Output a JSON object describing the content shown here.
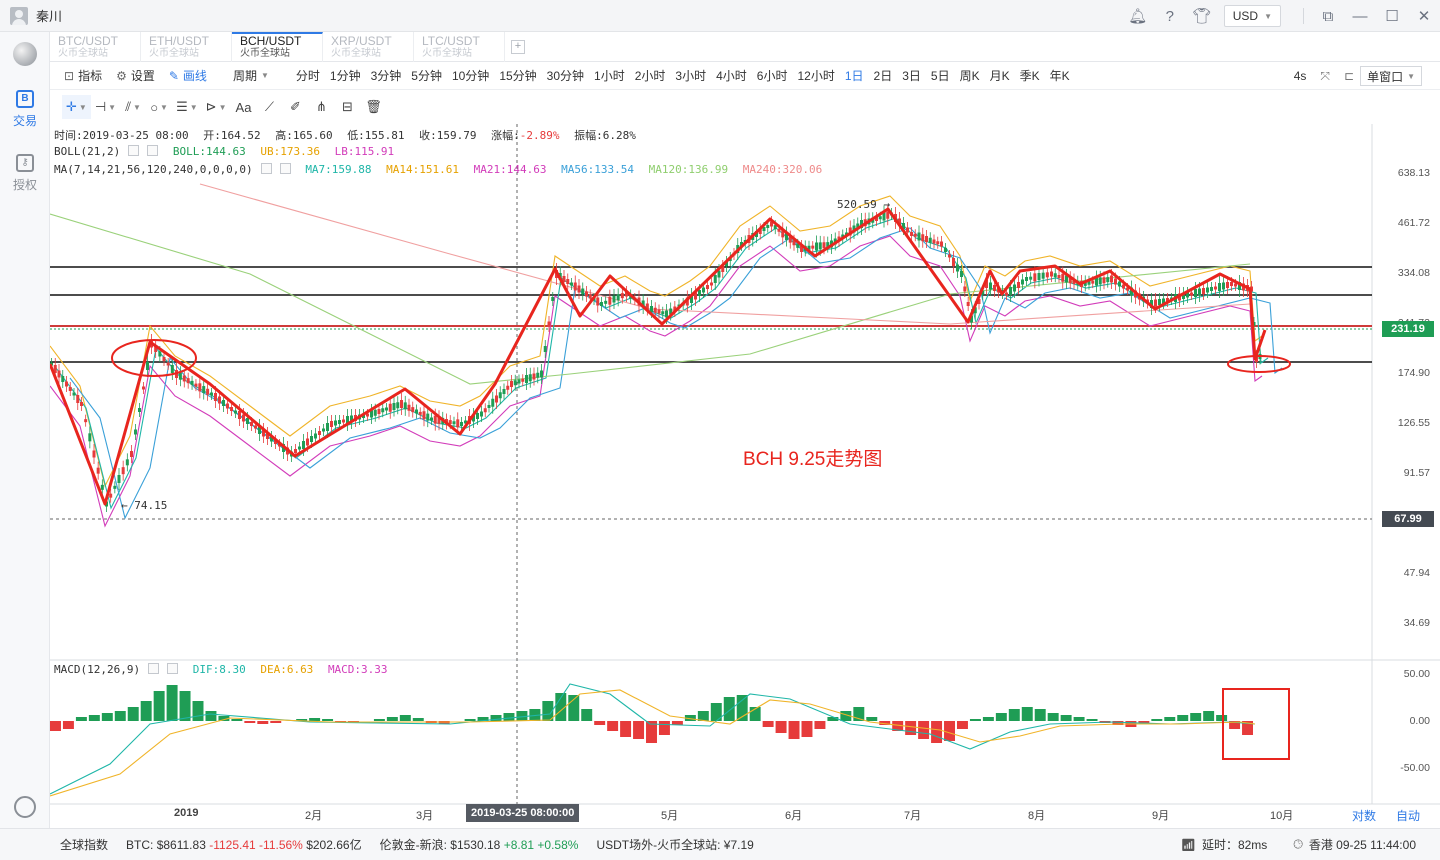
{
  "window": {
    "username": "秦川",
    "currency": "USD"
  },
  "sidebar": {
    "items": [
      {
        "label": "交易",
        "icon": "B"
      },
      {
        "label": "授权",
        "icon": "key"
      }
    ]
  },
  "symbol_tabs": [
    {
      "symbol": "BTC/USDT",
      "exchange": "火币全球站"
    },
    {
      "symbol": "ETH/USDT",
      "exchange": "火币全球站"
    },
    {
      "symbol": "BCH/USDT",
      "exchange": "火币全球站"
    },
    {
      "symbol": "XRP/USDT",
      "exchange": "火币全球站"
    },
    {
      "symbol": "LTC/USDT",
      "exchange": "火币全球站"
    }
  ],
  "toolbar": {
    "indicator_label": "指标",
    "settings_label": "设置",
    "draw_label": "画线",
    "period_label": "周期",
    "periods": [
      "分时",
      "1分钟",
      "3分钟",
      "5分钟",
      "10分钟",
      "15分钟",
      "30分钟",
      "1小时",
      "2小时",
      "3小时",
      "4小时",
      "6小时",
      "12小时",
      "1日",
      "2日",
      "3日",
      "5日",
      "周K",
      "月K",
      "季K",
      "年K"
    ],
    "active_period": "1日",
    "refresh_label": "4s",
    "window_mode": "单窗口"
  },
  "chart": {
    "info": {
      "time": "时间:2019-03-25 08:00",
      "open": "开:164.52",
      "high": "高:165.60",
      "low": "低:155.81",
      "close": "收:159.79",
      "change_label": "涨幅:",
      "change_value": "-2.89%",
      "amplitude": "振幅:6.28%"
    },
    "boll": {
      "name": "BOLL(21,2)",
      "boll": "BOLL:144.63",
      "ub": "UB:173.36",
      "lb": "LB:115.91"
    },
    "ma": {
      "name": "MA(7,14,21,56,120,240,0,0,0,0)",
      "ma7": "MA7:159.88",
      "ma14": "MA14:151.61",
      "ma21": "MA21:144.63",
      "ma56": "MA56:133.54",
      "ma120": "MA120:136.99",
      "ma240": "MA240:320.06"
    },
    "macd": {
      "name": "MACD(12,26,9)",
      "dif": "DIF:8.30",
      "dea": "DEA:6.63",
      "macd": "MACD:3.33"
    },
    "y_ticks": [
      "638.13",
      "461.72",
      "334.08",
      "241.72",
      "174.90",
      "126.55",
      "91.57",
      "47.94",
      "34.69"
    ],
    "macd_ticks": [
      "50.00",
      "0.00",
      "-50.00"
    ],
    "x_ticks": [
      "2019",
      "2月",
      "3月",
      "5月",
      "6月",
      "7月",
      "8月",
      "9月",
      "10月"
    ],
    "crosshair_date": "2019-03-25 08:00:00",
    "last_price": "231.19",
    "cross_price": "67.99",
    "high_marker": "520.59",
    "low_marker": "74.15",
    "annotation": "BCH 9.25走势图",
    "corner_left": "对数",
    "corner_right": "自动",
    "colors": {
      "up": "#1f9d55",
      "down": "#e63b3b",
      "annotation": "#e8251e",
      "last_price_bg": "#1f9d55",
      "cross_price_bg": "#444a52"
    }
  },
  "statusbar": {
    "index_label": "全球指数",
    "btc_label": "BTC:",
    "btc_price": "$8611.83",
    "btc_change": "-1125.41",
    "btc_pct": "-11.56%",
    "btc_volume": "$202.66亿",
    "gold_label": "伦敦金-新浪:",
    "gold_price": "$1530.18",
    "gold_change": "+8.81",
    "gold_pct": "+0.58%",
    "usdt_label": "USDT场外-火币全球站:",
    "usdt_price": "¥7.19",
    "latency": "延时：82ms",
    "clock": "香港 09-25 11:44:00"
  }
}
